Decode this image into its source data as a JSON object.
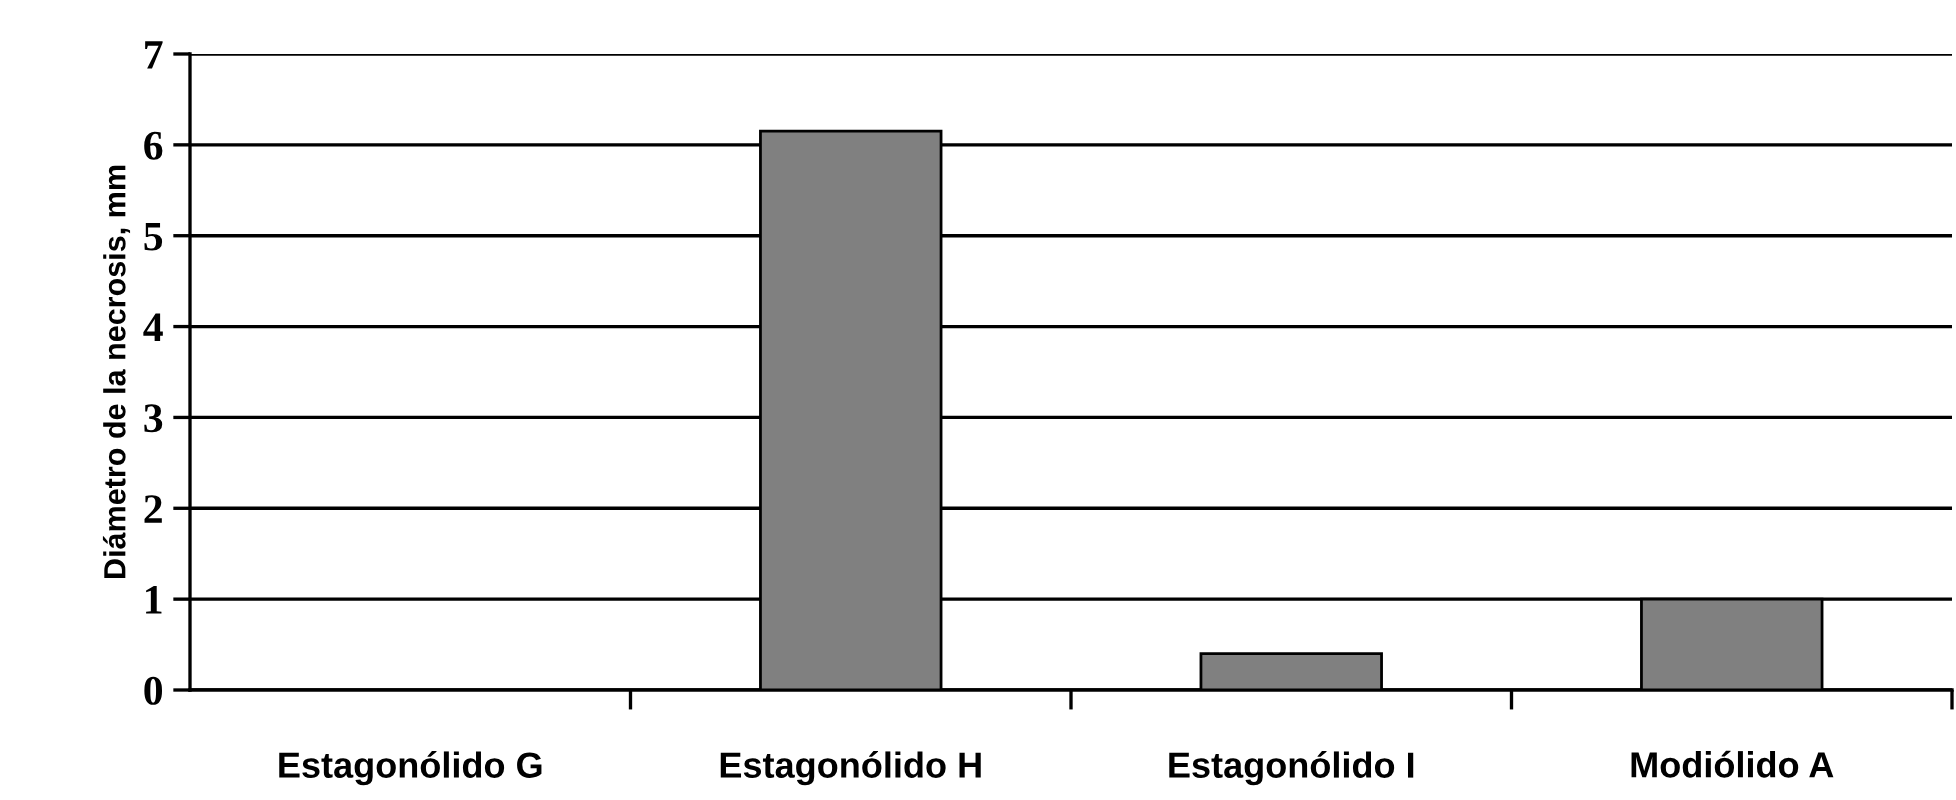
{
  "chart_data": {
    "type": "bar",
    "ylabel": "Diámetro de la necrosis, mm",
    "categories": [
      "Estagonólido G",
      "Estagonólido H",
      "Estagonólido I",
      "Modiólido A"
    ],
    "values": [
      0,
      6.15,
      0.4,
      1.0
    ],
    "color": "#808080",
    "ylim": [
      0,
      7
    ],
    "yticks": [
      0,
      1,
      2,
      3,
      4,
      5,
      6,
      7
    ],
    "grid": "y"
  }
}
